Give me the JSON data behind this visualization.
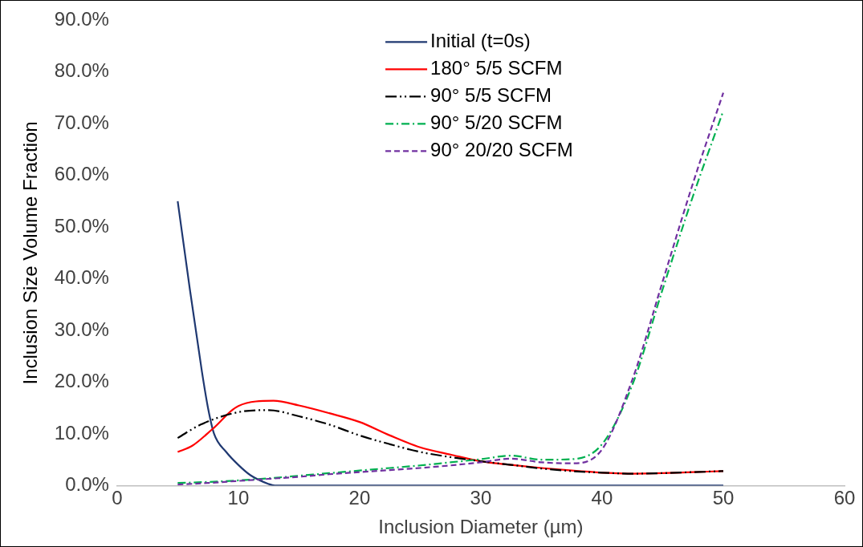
{
  "chart_data": {
    "type": "line",
    "xlabel": "Inclusion Diameter (µm)",
    "ylabel": "Inclusion Size Volume Fraction",
    "xlim": [
      0,
      60
    ],
    "xticks": [
      0,
      10,
      20,
      30,
      40,
      50,
      60
    ],
    "ylim": [
      0,
      90
    ],
    "yticks": [
      {
        "value": 0,
        "label": "0.0%"
      },
      {
        "value": 10,
        "label": "10.0%"
      },
      {
        "value": 20,
        "label": "20.0%"
      },
      {
        "value": 30,
        "label": "30.0%"
      },
      {
        "value": 40,
        "label": "40.0%"
      },
      {
        "value": 50,
        "label": "50.0%"
      },
      {
        "value": 60,
        "label": "60.0%"
      },
      {
        "value": 70,
        "label": "70.0%"
      },
      {
        "value": 80,
        "label": "80.0%"
      },
      {
        "value": 90,
        "label": "90.0%"
      }
    ],
    "grid": false,
    "legend": "top",
    "marker": "none",
    "series": [
      {
        "name": "Initial (t=0s)",
        "color": "#1f3871",
        "line_style": "solid",
        "x": [
          5,
          6,
          7,
          7.5,
          8,
          9,
          10,
          11,
          12.5,
          13,
          15,
          17.5,
          20,
          22.5,
          25,
          27.5,
          30,
          32.5,
          35,
          37.5,
          40,
          42.5,
          45,
          47.5,
          50
        ],
        "values": [
          55,
          38,
          22,
          15,
          10,
          6.5,
          4,
          2,
          0.3,
          0,
          0,
          0,
          0,
          0,
          0,
          0,
          0,
          0,
          0,
          0,
          0,
          0,
          0,
          0,
          0
        ]
      },
      {
        "name": "180° 5/5 SCFM",
        "color": "#ff0000",
        "line_style": "solid",
        "x": [
          5,
          6.2,
          7.9,
          10,
          12.9,
          15,
          17.5,
          20,
          22.5,
          25,
          27.5,
          30,
          32.5,
          35,
          37.5,
          40,
          42.5,
          45,
          47.5,
          50
        ],
        "values": [
          6.5,
          7.7,
          11,
          15.4,
          16.4,
          15.5,
          14,
          12.3,
          9.7,
          7.4,
          6,
          4.7,
          4,
          3.4,
          2.9,
          2.5,
          2.3,
          2.4,
          2.6,
          2.8
        ]
      },
      {
        "name": "90° 5/5 SCFM",
        "color": "#000000",
        "line_style": "dashdotdot",
        "x": [
          5,
          6.9,
          10,
          12.5,
          15,
          17.5,
          20,
          22.5,
          25,
          27.5,
          30,
          32.5,
          35,
          37.5,
          40,
          42.5,
          45,
          47.5,
          50
        ],
        "values": [
          9.2,
          11.8,
          14.2,
          14.6,
          13.4,
          11.8,
          9.7,
          8,
          6.5,
          5.5,
          4.7,
          4,
          3.3,
          2.8,
          2.5,
          2.3,
          2.4,
          2.6,
          2.8
        ]
      },
      {
        "name": "90° 5/20 SCFM",
        "color": "#00b050",
        "line_style": "dashdot",
        "x": [
          5,
          7.5,
          10,
          12.5,
          15,
          17.5,
          20,
          22.5,
          25,
          27.5,
          30,
          32.5,
          35,
          37.5,
          40,
          42.5,
          45,
          47.5,
          50
        ],
        "values": [
          0.5,
          0.7,
          1,
          1.4,
          1.9,
          2.4,
          2.9,
          3.4,
          3.9,
          4.5,
          5.1,
          5.8,
          5,
          5.1,
          8,
          19.5,
          38,
          56,
          72.5
        ]
      },
      {
        "name": "90° 20/20 SCFM",
        "color": "#7030a0",
        "line_style": "dashed",
        "x": [
          5,
          7.5,
          10,
          12.5,
          15,
          17.5,
          20,
          22.5,
          25,
          27.5,
          30,
          32.5,
          35,
          37.5,
          40,
          42.5,
          45,
          47.5,
          50
        ],
        "values": [
          0.2,
          0.5,
          0.9,
          1.3,
          1.7,
          2.2,
          2.6,
          3,
          3.4,
          3.9,
          4.5,
          5.2,
          4.5,
          4.3,
          7,
          20.5,
          39.5,
          58.5,
          76
        ]
      }
    ]
  }
}
